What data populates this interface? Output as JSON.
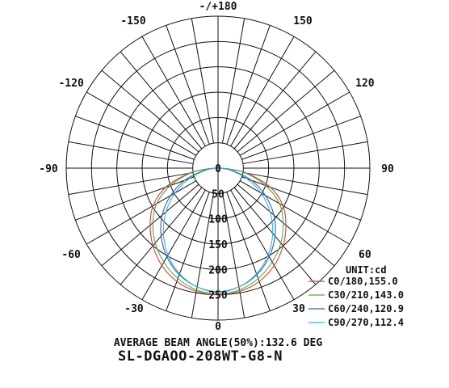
{
  "chart_data": {
    "type": "polar-line",
    "angle_labels": [
      {
        "deg": 180,
        "text": "-/+180"
      },
      {
        "deg": 150,
        "text": "150"
      },
      {
        "deg": -150,
        "text": "-150"
      },
      {
        "deg": 120,
        "text": "120"
      },
      {
        "deg": -120,
        "text": "-120"
      },
      {
        "deg": 90,
        "text": "90"
      },
      {
        "deg": -90,
        "text": "-90"
      },
      {
        "deg": 60,
        "text": "60"
      },
      {
        "deg": -60,
        "text": "-60"
      },
      {
        "deg": 30,
        "text": "30"
      },
      {
        "deg": -30,
        "text": "-30"
      },
      {
        "deg": 0,
        "text": "0"
      }
    ],
    "radial_ticks": [
      0,
      50,
      100,
      150,
      200,
      250
    ],
    "rmax": 300,
    "unit_label": "UNIT:cd",
    "series": [
      {
        "name": "C0/180,155.0",
        "color": "#e23b3b",
        "points": [
          [
            0,
            250
          ],
          [
            10,
            247
          ],
          [
            20,
            238
          ],
          [
            30,
            222
          ],
          [
            40,
            200
          ],
          [
            50,
            175
          ],
          [
            60,
            148
          ],
          [
            70,
            110
          ],
          [
            80,
            58
          ],
          [
            85,
            25
          ],
          [
            90,
            5
          ],
          [
            100,
            0
          ]
        ]
      },
      {
        "name": "C30/210,143.0",
        "color": "#4caf3a",
        "points": [
          [
            0,
            248
          ],
          [
            10,
            244
          ],
          [
            20,
            232
          ],
          [
            30,
            214
          ],
          [
            40,
            193
          ],
          [
            50,
            168
          ],
          [
            60,
            140
          ],
          [
            70,
            100
          ],
          [
            80,
            55
          ],
          [
            85,
            25
          ],
          [
            90,
            5
          ],
          [
            100,
            0
          ]
        ]
      },
      {
        "name": "C60/240,120.9",
        "color": "#2f63b8",
        "points": [
          [
            0,
            244
          ],
          [
            10,
            238
          ],
          [
            20,
            224
          ],
          [
            30,
            202
          ],
          [
            40,
            175
          ],
          [
            50,
            144
          ],
          [
            60,
            108
          ],
          [
            70,
            70
          ],
          [
            80,
            30
          ],
          [
            90,
            5
          ],
          [
            100,
            0
          ]
        ]
      },
      {
        "name": "C90/270,112.4",
        "color": "#3fb0dc",
        "points": [
          [
            0,
            245
          ],
          [
            10,
            238
          ],
          [
            20,
            222
          ],
          [
            30,
            198
          ],
          [
            40,
            168
          ],
          [
            50,
            134
          ],
          [
            60,
            98
          ],
          [
            70,
            60
          ],
          [
            80,
            25
          ],
          [
            90,
            5
          ],
          [
            100,
            0
          ]
        ]
      }
    ],
    "beam_angle_text": "AVERAGE BEAM ANGLE(50%):132.6 DEG",
    "model_text": "SL-DGAOO-208WT-G8-N"
  }
}
